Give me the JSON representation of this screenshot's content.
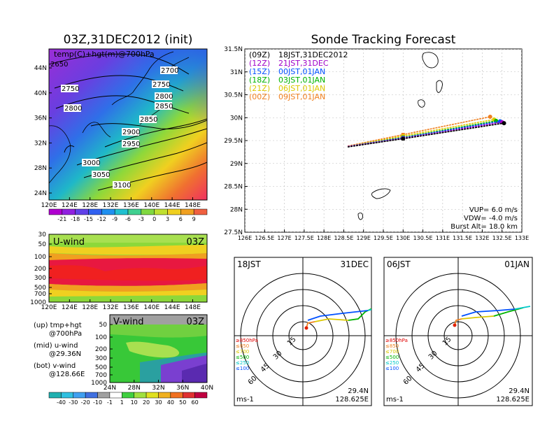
{
  "colors": {
    "magenta": "#a000c8",
    "blue": "#0050ff",
    "green": "#00b400",
    "yellow": "#dcc800",
    "orange": "#f08020",
    "red": "#e00000",
    "cyan": "#00c8c8"
  },
  "chart_data": [
    {
      "type": "heatmap",
      "title": "03Z,31DEC2012 (init)",
      "label": "temp(C)+hgt(m)@700hPa",
      "x_ticks": [
        "120E",
        "124E",
        "128E",
        "132E",
        "136E",
        "140E",
        "144E",
        "148E"
      ],
      "y_ticks": [
        "24N",
        "28N",
        "32N",
        "36N",
        "40N",
        "44N"
      ],
      "contours": [
        "2650",
        "2700",
        "2750",
        "2750",
        "2800",
        "2800",
        "2850",
        "2850",
        "2900",
        "2950",
        "3000",
        "3050",
        "3100"
      ],
      "colorbar": [
        "-21",
        "-18",
        "-15",
        "-12",
        "-9",
        "-6",
        "-3",
        "0",
        "3",
        "6",
        "9"
      ]
    },
    {
      "type": "heatmap",
      "title": "U-wind",
      "time": "03Z",
      "x_ticks": [
        "120E",
        "124E",
        "128E",
        "132E",
        "136E",
        "140E",
        "144E",
        "148E"
      ],
      "y_ticks": [
        "30",
        "50",
        "100",
        "200",
        "300",
        "500",
        "700",
        "1000"
      ]
    },
    {
      "type": "heatmap",
      "title": "V-wind",
      "time": "03Z",
      "x_ticks": [
        "24N",
        "28N",
        "32N",
        "36N",
        "40N"
      ],
      "y_ticks": [
        "50",
        "100",
        "200",
        "300",
        "500",
        "700",
        "1000"
      ],
      "colorbar": [
        "-40",
        "-30",
        "-20",
        "-10",
        "-1",
        "1",
        "10",
        "20",
        "30",
        "40",
        "50",
        "60"
      ]
    },
    {
      "type": "line",
      "title": "Sonde Tracking Forecast",
      "x_ticks": [
        "126E",
        "126.5E",
        "127E",
        "127.5E",
        "128E",
        "128.5E",
        "129E",
        "129.5E",
        "130E",
        "130.5E",
        "131E",
        "131.5E",
        "132E",
        "132.5E",
        "133E"
      ],
      "y_ticks": [
        "27.5N",
        "28N",
        "28.5N",
        "29N",
        "29.5N",
        "30N",
        "30.5N",
        "31N",
        "31.5N"
      ],
      "xlim": [
        126,
        133
      ],
      "ylim": [
        27.5,
        31.5
      ],
      "legend": [
        {
          "code": "(09Z)",
          "label": "18JST,31DEC2012",
          "color": "#000000"
        },
        {
          "code": "(12Z)",
          "label": "21JST,31DEC",
          "color": "#a000c8"
        },
        {
          "code": "(15Z)",
          "label": "00JST,01JAN",
          "color": "#0050ff"
        },
        {
          "code": "(18Z)",
          "label": "03JST,01JAN",
          "color": "#00b400"
        },
        {
          "code": "(21Z)",
          "label": "06JST,01JAN",
          "color": "#dcc800"
        },
        {
          "code": "(00Z)",
          "label": "09JST,01JAN",
          "color": "#f08020"
        }
      ],
      "series": [
        {
          "color": "#000000",
          "x": [
            128.6,
            130.0,
            132.55
          ],
          "y": [
            29.36,
            29.54,
            29.88
          ]
        },
        {
          "color": "#a000c8",
          "x": [
            128.6,
            130.0,
            132.5
          ],
          "y": [
            29.37,
            29.55,
            29.9
          ]
        },
        {
          "color": "#0050ff",
          "x": [
            128.6,
            130.0,
            132.45
          ],
          "y": [
            29.37,
            29.56,
            29.92
          ]
        },
        {
          "color": "#00b400",
          "x": [
            128.6,
            130.0,
            132.35
          ],
          "y": [
            29.37,
            29.57,
            29.93
          ]
        },
        {
          "color": "#dcc800",
          "x": [
            128.6,
            130.0,
            132.3
          ],
          "y": [
            29.37,
            29.6,
            29.96
          ]
        },
        {
          "color": "#f08020",
          "x": [
            128.6,
            130.0,
            132.2
          ],
          "y": [
            29.38,
            29.63,
            30.02
          ]
        }
      ],
      "info": {
        "vup": "VUP= 6.0 m/s",
        "vdw": "VDW= -4.0 m/s",
        "burst": "Burst Alt= 18.0 km"
      }
    }
  ],
  "hodographs": [
    {
      "left_label": "18JST",
      "right_label": "31DEC",
      "ring_labels": [
        "15",
        "30",
        "45",
        "60"
      ],
      "legend": [
        "≥850hPa",
        "≤850",
        "≤700",
        "≤500",
        "≤250",
        "≤100"
      ],
      "unit": "ms-1",
      "lat": "29.4N",
      "lon": "128.625E"
    },
    {
      "left_label": "06JST",
      "right_label": "01JAN",
      "ring_labels": [
        "15",
        "30",
        "45",
        "60"
      ],
      "legend": [
        "≥850hPa",
        "≤850",
        "≤700",
        "≤500",
        "≤250",
        "≤100"
      ],
      "unit": "ms-1",
      "lat": "29.4N",
      "lon": "128.625E"
    }
  ],
  "notes": [
    {
      "line1": "(up) tmp+hgt",
      "line2": "@700hPa"
    },
    {
      "line1": "(mid) u-wind",
      "line2": "@29.36N"
    },
    {
      "line1": "(bot) v-wind",
      "line2": "@128.66E"
    }
  ]
}
